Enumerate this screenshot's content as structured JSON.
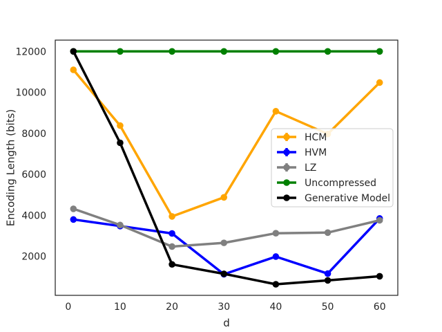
{
  "chart_data": {
    "type": "line",
    "title": "",
    "xlabel": "d",
    "ylabel": "Encoding Length (bits)",
    "xlim": [
      -2.5,
      63.5
    ],
    "ylim": [
      100,
      12550
    ],
    "xticks": [
      0,
      10,
      20,
      30,
      40,
      50,
      60
    ],
    "yticks": [
      2000,
      4000,
      6000,
      8000,
      10000,
      12000
    ],
    "grid": false,
    "legend_position": "center-right",
    "x": [
      1,
      10,
      20,
      30,
      40,
      50,
      60
    ],
    "series": [
      {
        "name": "HCM",
        "color": "#ffa500",
        "errorbar": true,
        "values": [
          11100,
          8380,
          3950,
          4880,
          9080,
          7970,
          10480
        ]
      },
      {
        "name": "HVM",
        "color": "#0000ff",
        "errorbar": true,
        "values": [
          3800,
          3480,
          3120,
          1130,
          1990,
          1160,
          3850
        ]
      },
      {
        "name": "LZ",
        "color": "#808080",
        "errorbar": true,
        "values": [
          4320,
          3530,
          2480,
          2660,
          3130,
          3160,
          3760
        ]
      },
      {
        "name": "Uncompressed",
        "color": "#008000",
        "errorbar": false,
        "values": [
          12000,
          12000,
          12000,
          12000,
          12000,
          12000,
          12000
        ]
      },
      {
        "name": "Generative Model",
        "color": "#000000",
        "errorbar": false,
        "values": [
          12000,
          7540,
          1610,
          1150,
          640,
          830,
          1030
        ]
      }
    ]
  }
}
